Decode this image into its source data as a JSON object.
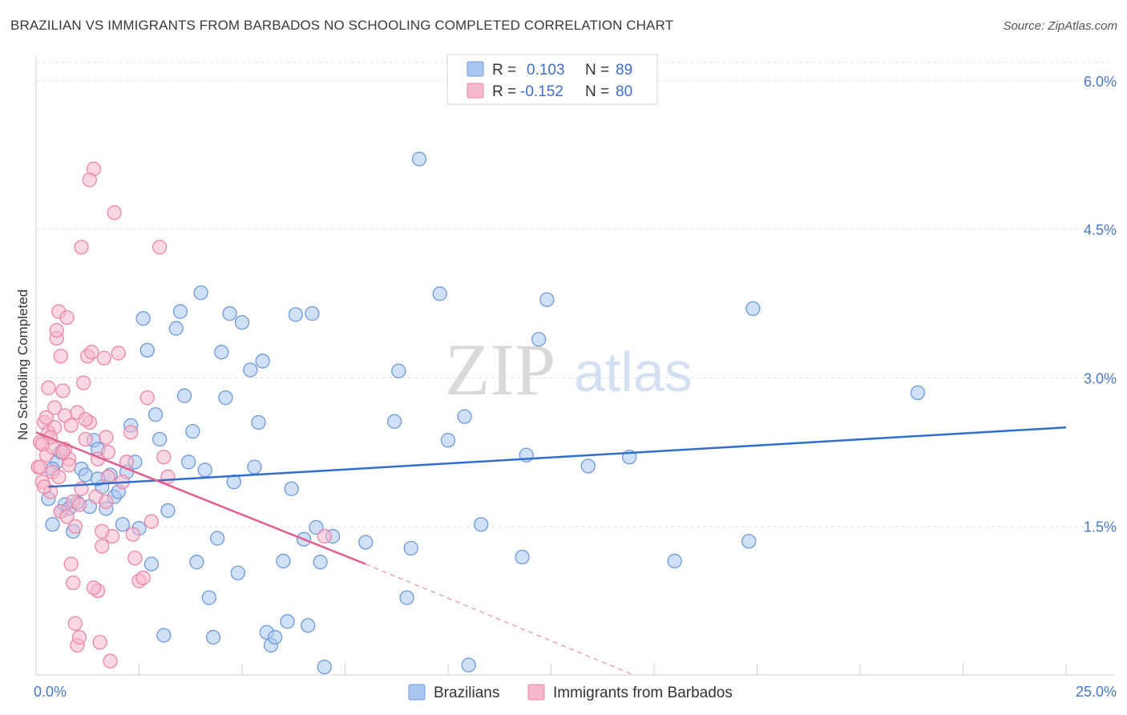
{
  "title": "BRAZILIAN VS IMMIGRANTS FROM BARBADOS NO SCHOOLING COMPLETED CORRELATION CHART",
  "source": "Source: ZipAtlas.com",
  "watermark": {
    "zip": "ZIP",
    "atlas": "atlas"
  },
  "colors": {
    "blue_fill": "#a9c6ee",
    "blue_stroke": "#6d9ad8",
    "blue_line": "#2f6fcb",
    "pink_fill": "#f6b8cc",
    "pink_stroke": "#ea86a6",
    "pink_line": "#e0608f",
    "grid": "#e3e3e3",
    "axis_text": "#4a78c4"
  },
  "legend": {
    "rows": [
      {
        "r_label": "R =",
        "r_value": "0.103",
        "n_label": "N =",
        "n_value": "89"
      },
      {
        "r_label": "R =",
        "r_value": "-0.152",
        "n_label": "N =",
        "n_value": "80"
      }
    ]
  },
  "bottom_legend": [
    "Brazilians",
    "Immigrants from Barbados"
  ],
  "chart_data": {
    "type": "scatter",
    "xlabel": "",
    "ylabel": "No Schooling Completed",
    "xlim": [
      0,
      25
    ],
    "ylim": [
      0,
      6.25
    ],
    "x_tick_labels": {
      "left": "0.0%",
      "right": "25.0%"
    },
    "y_ticks": [
      {
        "value": 1.5,
        "label": "1.5%"
      },
      {
        "value": 3.0,
        "label": "3.0%"
      },
      {
        "value": 4.5,
        "label": "4.5%"
      },
      {
        "value": 6.0,
        "label": "6.0%"
      }
    ],
    "grid": true,
    "series": [
      {
        "name": "Brazilians",
        "trend": {
          "x": [
            0.3,
            25.0
          ],
          "y": [
            1.9,
            2.5
          ]
        },
        "points": [
          [
            0.3,
            1.78
          ],
          [
            0.4,
            1.52
          ],
          [
            0.5,
            2.15
          ],
          [
            0.6,
            1.65
          ],
          [
            0.7,
            1.72
          ],
          [
            0.8,
            1.68
          ],
          [
            0.9,
            1.45
          ],
          [
            1.0,
            1.74
          ],
          [
            1.1,
            2.08
          ],
          [
            1.2,
            2.02
          ],
          [
            1.3,
            1.7
          ],
          [
            1.4,
            2.37
          ],
          [
            1.5,
            2.28
          ],
          [
            1.6,
            1.9
          ],
          [
            1.7,
            1.68
          ],
          [
            1.8,
            2.02
          ],
          [
            1.9,
            1.8
          ],
          [
            2.1,
            1.52
          ],
          [
            2.2,
            2.05
          ],
          [
            2.3,
            2.52
          ],
          [
            2.4,
            2.15
          ],
          [
            2.5,
            1.48
          ],
          [
            2.6,
            3.6
          ],
          [
            2.7,
            3.28
          ],
          [
            2.8,
            1.12
          ],
          [
            2.9,
            2.63
          ],
          [
            3.0,
            2.38
          ],
          [
            3.1,
            0.4
          ],
          [
            3.2,
            1.66
          ],
          [
            3.4,
            3.5
          ],
          [
            3.5,
            3.67
          ],
          [
            3.6,
            2.82
          ],
          [
            3.7,
            2.15
          ],
          [
            3.8,
            2.46
          ],
          [
            3.9,
            1.14
          ],
          [
            4.0,
            3.86
          ],
          [
            4.1,
            2.07
          ],
          [
            4.2,
            0.78
          ],
          [
            4.3,
            0.38
          ],
          [
            4.4,
            1.38
          ],
          [
            4.5,
            3.26
          ],
          [
            4.6,
            2.8
          ],
          [
            4.7,
            3.65
          ],
          [
            4.8,
            1.95
          ],
          [
            4.9,
            1.03
          ],
          [
            5.0,
            3.56
          ],
          [
            5.2,
            3.08
          ],
          [
            5.4,
            2.55
          ],
          [
            5.5,
            3.17
          ],
          [
            5.6,
            0.43
          ],
          [
            5.7,
            0.3
          ],
          [
            5.8,
            0.38
          ],
          [
            6.0,
            1.15
          ],
          [
            6.1,
            0.54
          ],
          [
            6.2,
            1.88
          ],
          [
            6.3,
            3.64
          ],
          [
            6.5,
            1.37
          ],
          [
            6.6,
            0.5
          ],
          [
            6.7,
            3.65
          ],
          [
            6.8,
            1.49
          ],
          [
            6.9,
            1.14
          ],
          [
            7.0,
            0.08
          ],
          [
            7.2,
            1.4
          ],
          [
            8.0,
            1.34
          ],
          [
            8.7,
            2.56
          ],
          [
            8.8,
            3.07
          ],
          [
            9.0,
            0.78
          ],
          [
            9.1,
            1.28
          ],
          [
            9.3,
            5.21
          ],
          [
            9.8,
            3.85
          ],
          [
            10.0,
            2.37
          ],
          [
            10.4,
            2.61
          ],
          [
            10.5,
            0.1
          ],
          [
            10.8,
            1.52
          ],
          [
            11.8,
            1.19
          ],
          [
            11.9,
            2.22
          ],
          [
            12.2,
            3.39
          ],
          [
            12.4,
            3.79
          ],
          [
            13.4,
            2.11
          ],
          [
            14.4,
            2.2
          ],
          [
            15.5,
            1.15
          ],
          [
            17.3,
            1.35
          ],
          [
            17.4,
            3.7
          ],
          [
            21.4,
            2.85
          ],
          [
            0.6,
            2.25
          ],
          [
            1.5,
            1.98
          ],
          [
            0.4,
            2.08
          ],
          [
            2.0,
            1.85
          ],
          [
            5.3,
            2.1
          ]
        ]
      },
      {
        "name": "Immigrants from Barbados",
        "trend": {
          "x": [
            0.0,
            8.0
          ],
          "y": [
            2.45,
            1.12
          ]
        },
        "trend_dashed": {
          "x": [
            8.0,
            14.5
          ],
          "y": [
            1.12,
            0.0
          ]
        },
        "points": [
          [
            0.05,
            2.1
          ],
          [
            0.1,
            2.35
          ],
          [
            0.15,
            1.95
          ],
          [
            0.2,
            2.55
          ],
          [
            0.25,
            2.22
          ],
          [
            0.3,
            2.45
          ],
          [
            0.35,
            1.85
          ],
          [
            0.4,
            2.3
          ],
          [
            0.45,
            2.5
          ],
          [
            0.5,
            3.4
          ],
          [
            0.55,
            3.67
          ],
          [
            0.6,
            3.22
          ],
          [
            0.65,
            2.87
          ],
          [
            0.7,
            2.62
          ],
          [
            0.75,
            3.61
          ],
          [
            0.8,
            2.18
          ],
          [
            0.85,
            1.12
          ],
          [
            0.9,
            0.93
          ],
          [
            0.95,
            0.52
          ],
          [
            1.0,
            0.3
          ],
          [
            1.05,
            0.38
          ],
          [
            1.1,
            4.32
          ],
          [
            1.15,
            2.95
          ],
          [
            1.2,
            2.38
          ],
          [
            1.25,
            3.22
          ],
          [
            1.3,
            2.55
          ],
          [
            1.35,
            3.26
          ],
          [
            1.4,
            5.11
          ],
          [
            1.45,
            1.8
          ],
          [
            1.5,
            0.85
          ],
          [
            1.55,
            0.33
          ],
          [
            1.6,
            1.3
          ],
          [
            1.65,
            3.2
          ],
          [
            1.7,
            2.4
          ],
          [
            1.75,
            2.0
          ],
          [
            1.8,
            0.14
          ],
          [
            1.85,
            1.4
          ],
          [
            1.9,
            4.67
          ],
          [
            2.0,
            3.25
          ],
          [
            2.1,
            1.95
          ],
          [
            2.2,
            2.15
          ],
          [
            2.3,
            2.45
          ],
          [
            2.4,
            1.18
          ],
          [
            2.5,
            0.95
          ],
          [
            2.6,
            0.98
          ],
          [
            2.7,
            2.8
          ],
          [
            2.8,
            1.55
          ],
          [
            3.0,
            4.32
          ],
          [
            3.1,
            2.2
          ],
          [
            3.2,
            2.0
          ],
          [
            0.3,
            2.9
          ],
          [
            0.4,
            2.05
          ],
          [
            0.5,
            3.48
          ],
          [
            0.6,
            1.65
          ],
          [
            0.7,
            2.28
          ],
          [
            0.8,
            2.12
          ],
          [
            0.9,
            1.75
          ],
          [
            1.0,
            2.65
          ],
          [
            1.1,
            1.88
          ],
          [
            1.2,
            2.58
          ],
          [
            1.3,
            5.0
          ],
          [
            1.4,
            0.88
          ],
          [
            1.5,
            2.18
          ],
          [
            1.6,
            1.45
          ],
          [
            1.7,
            1.75
          ],
          [
            0.2,
            1.9
          ],
          [
            0.25,
            2.6
          ],
          [
            0.35,
            2.4
          ],
          [
            0.45,
            2.7
          ],
          [
            0.55,
            2.0
          ],
          [
            0.65,
            2.25
          ],
          [
            0.75,
            1.6
          ],
          [
            0.85,
            2.52
          ],
          [
            0.95,
            1.5
          ],
          [
            1.05,
            1.72
          ],
          [
            7.0,
            1.4
          ],
          [
            2.35,
            1.42
          ],
          [
            0.15,
            2.33
          ],
          [
            0.1,
            2.1
          ],
          [
            1.75,
            2.25
          ]
        ]
      }
    ]
  }
}
